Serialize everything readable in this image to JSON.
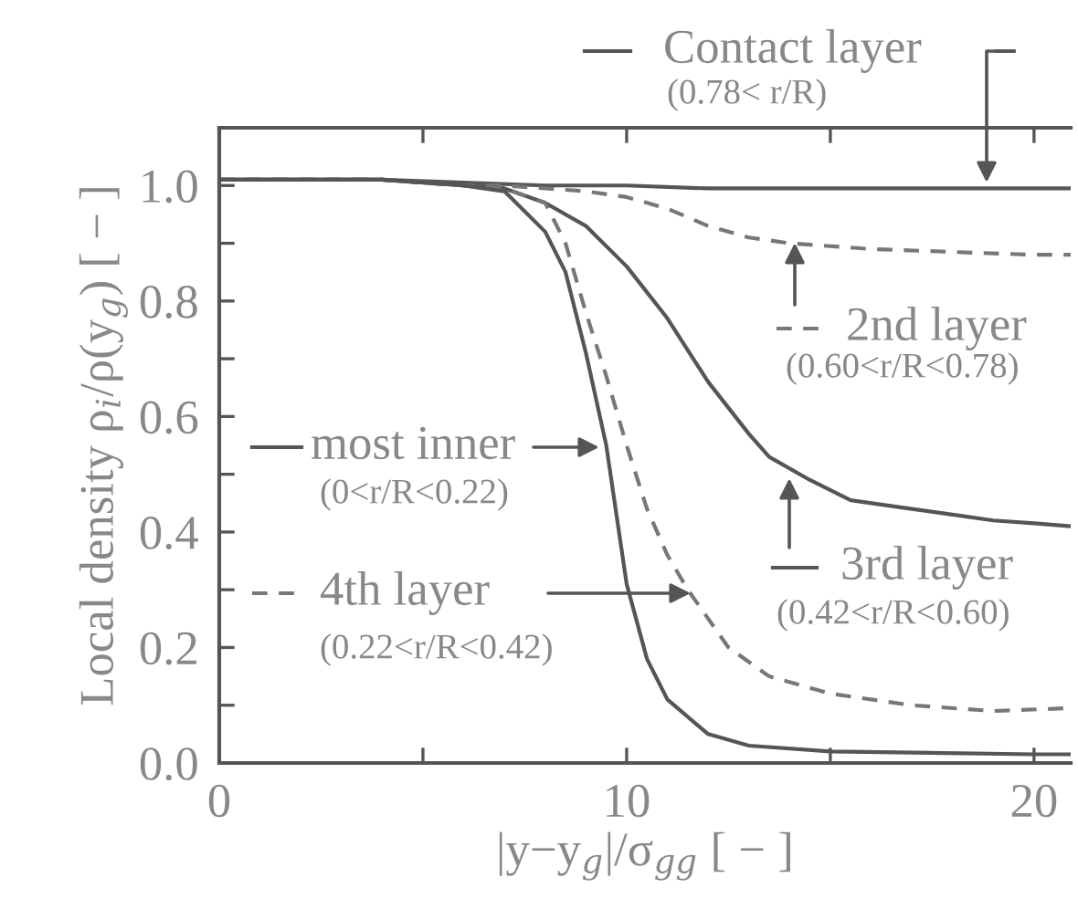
{
  "chart_data": {
    "type": "line",
    "xlabel": "|y−y$_{g}$|/σ$_{gg}$ [ − ]",
    "ylabel": "Local density ρ$_{i}$/ρ(y$_{g}$) [ − ]",
    "xlim": [
      0,
      20.9
    ],
    "ylim": [
      0,
      1.1
    ],
    "xticks": [
      0,
      {
        "value": 5,
        "label": null
      },
      10,
      {
        "value": 15,
        "label": null
      },
      20
    ],
    "yticks": [
      {
        "value": 0,
        "label": "0.0"
      },
      {
        "value": 0.1,
        "label": null
      },
      0.2,
      {
        "value": 0.3,
        "label": null
      },
      0.4,
      {
        "value": 0.5,
        "label": null
      },
      0.6,
      {
        "value": 0.7,
        "label": null
      },
      0.8,
      {
        "value": 0.9,
        "label": null
      },
      {
        "value": 1.0,
        "label": "1.0"
      }
    ],
    "grid": false,
    "legend": "right",
    "series": [
      {
        "name": "Contact layer\n(0.78< r/R)",
        "color": "#555555",
        "line_style": "solid",
        "x": [
          0,
          2,
          4,
          6,
          8,
          10,
          12,
          14,
          16,
          18,
          20,
          20.9
        ],
        "values": [
          1.01,
          1.01,
          1.01,
          1.005,
          1.0,
          1.0,
          0.995,
          0.995,
          0.995,
          0.995,
          0.995,
          0.995
        ]
      },
      {
        "name": "2nd layer\n(0.60<r/R<0.78)",
        "color": "#777777",
        "line_style": "dashed",
        "x": [
          0,
          2,
          4,
          6,
          7,
          8,
          9,
          10,
          11,
          12,
          13,
          14,
          16,
          18,
          20,
          20.9
        ],
        "values": [
          1.01,
          1.01,
          1.01,
          1.0,
          1.0,
          0.995,
          0.99,
          0.98,
          0.96,
          0.93,
          0.91,
          0.9,
          0.89,
          0.885,
          0.88,
          0.88
        ]
      },
      {
        "name": "3rd layer\n(0.42<r/R<0.60)",
        "color": "#555555",
        "line_style": "solid",
        "x": [
          0,
          2,
          4,
          6,
          7,
          8,
          9,
          10,
          11,
          12,
          13,
          13.5,
          14.5,
          15.5,
          17,
          18,
          19,
          20,
          20.9
        ],
        "values": [
          1.01,
          1.01,
          1.01,
          1.0,
          0.995,
          0.97,
          0.93,
          0.86,
          0.77,
          0.66,
          0.57,
          0.53,
          0.49,
          0.455,
          0.44,
          0.43,
          0.42,
          0.415,
          0.41
        ]
      },
      {
        "name": "4th layer\n(0.22<r/R<0.42)",
        "color": "#777777",
        "line_style": "dashed",
        "x": [
          0,
          2,
          4,
          6,
          7,
          8,
          8.5,
          9,
          9.5,
          10,
          10.5,
          11,
          11.5,
          12.5,
          13.5,
          15,
          17,
          19,
          20.9
        ],
        "values": [
          1.01,
          1.01,
          1.01,
          1.0,
          0.995,
          0.97,
          0.9,
          0.78,
          0.67,
          0.55,
          0.44,
          0.36,
          0.3,
          0.2,
          0.15,
          0.12,
          0.1,
          0.09,
          0.095
        ]
      },
      {
        "name": "most inner\n(0<r/R<0.22)",
        "color": "#555555",
        "line_style": "solid",
        "x": [
          0,
          2,
          4,
          6,
          7,
          8,
          8.5,
          9,
          9.5,
          10,
          10.5,
          11,
          12,
          13,
          15,
          20,
          20.9
        ],
        "values": [
          1.01,
          1.01,
          1.01,
          1.0,
          0.99,
          0.92,
          0.85,
          0.71,
          0.55,
          0.31,
          0.18,
          0.11,
          0.05,
          0.03,
          0.02,
          0.015,
          0.015
        ]
      }
    ]
  }
}
